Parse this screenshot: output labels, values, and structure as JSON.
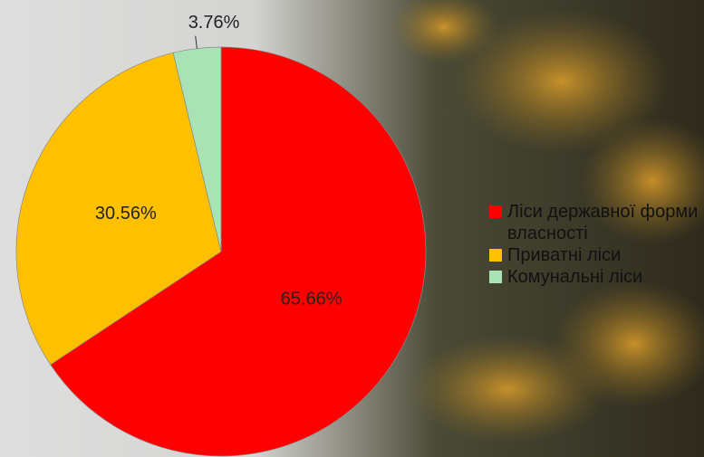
{
  "chart_data": {
    "type": "pie",
    "categories": [
      "Ліси державної форми власності",
      "Приватні ліси",
      "Комунальні ліси"
    ],
    "values": [
      65.66,
      30.56,
      3.76
    ],
    "value_labels": [
      "65.66%",
      "30.56%",
      "3.76%"
    ],
    "colors": [
      "#ff0000",
      "#ffc000",
      "#a9e2b4"
    ],
    "legend": "right"
  }
}
